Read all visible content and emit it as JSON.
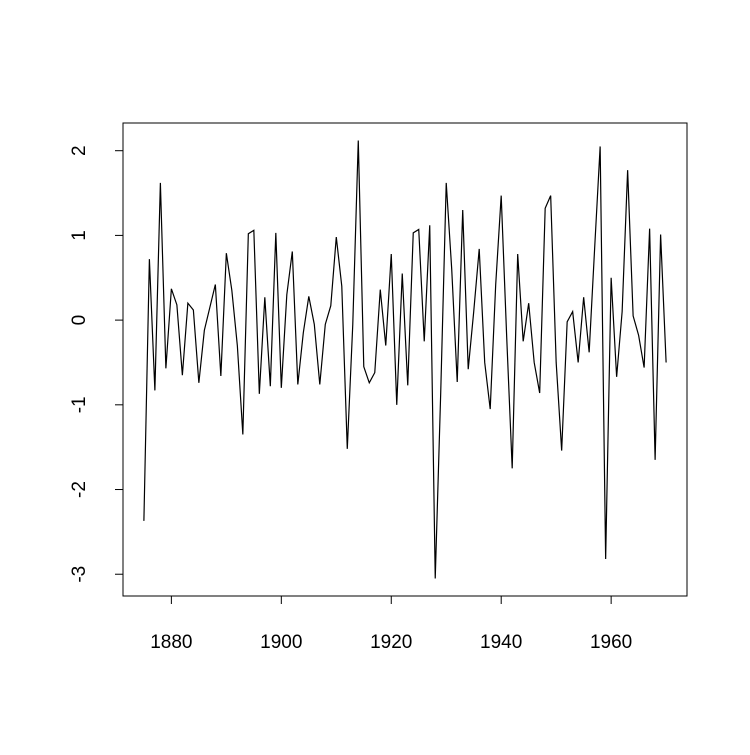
{
  "chart_data": {
    "type": "line",
    "color": "#000000",
    "x": [
      1875,
      1876,
      1877,
      1878,
      1879,
      1880,
      1881,
      1882,
      1883,
      1884,
      1885,
      1886,
      1887,
      1888,
      1889,
      1890,
      1891,
      1892,
      1893,
      1894,
      1895,
      1896,
      1897,
      1898,
      1899,
      1900,
      1901,
      1902,
      1903,
      1904,
      1905,
      1906,
      1907,
      1908,
      1909,
      1910,
      1911,
      1912,
      1913,
      1914,
      1915,
      1916,
      1917,
      1918,
      1919,
      1920,
      1921,
      1922,
      1923,
      1924,
      1925,
      1926,
      1927,
      1928,
      1929,
      1930,
      1931,
      1932,
      1933,
      1934,
      1935,
      1936,
      1937,
      1938,
      1939,
      1940,
      1941,
      1942,
      1943,
      1944,
      1945,
      1946,
      1947,
      1948,
      1949,
      1950,
      1951,
      1952,
      1953,
      1954,
      1955,
      1956,
      1957,
      1958,
      1959,
      1960,
      1961,
      1962,
      1963,
      1964,
      1965,
      1966,
      1967,
      1968,
      1969,
      1970
    ],
    "values": [
      -2.37,
      0.72,
      -0.83,
      1.62,
      -0.57,
      0.37,
      0.18,
      -0.65,
      0.2,
      0.12,
      -0.74,
      -0.12,
      0.15,
      0.42,
      -0.66,
      0.79,
      0.35,
      -0.3,
      -1.35,
      1.02,
      1.06,
      -0.87,
      0.27,
      -0.78,
      1.03,
      -0.8,
      0.3,
      0.81,
      -0.76,
      -0.15,
      0.28,
      -0.05,
      -0.76,
      -0.05,
      0.17,
      0.98,
      0.4,
      -1.52,
      -0.05,
      2.12,
      -0.55,
      -0.74,
      -0.62,
      0.36,
      -0.3,
      0.78,
      -1.0,
      0.55,
      -0.77,
      1.03,
      1.07,
      -0.25,
      1.12,
      -3.05,
      -0.85,
      1.62,
      0.6,
      -0.73,
      1.3,
      -0.58,
      0.1,
      0.84,
      -0.5,
      -1.05,
      0.42,
      1.47,
      -0.2,
      -1.75,
      0.78,
      -0.25,
      0.2,
      -0.5,
      -0.86,
      1.32,
      1.47,
      -0.5,
      -1.54,
      -0.02,
      0.1,
      -0.5,
      0.27,
      -0.38,
      0.85,
      2.05,
      -2.82,
      0.5,
      -0.67,
      0.1,
      1.77,
      0.05,
      -0.18,
      -0.56,
      1.08,
      -1.65,
      1.01,
      -0.5
    ],
    "xlim": [
      1871.2,
      1973.8
    ],
    "xticks": [
      1880,
      1900,
      1920,
      1940,
      1960
    ],
    "ylim": [
      -3.257,
      2.327
    ],
    "yticks": [
      -3,
      -2,
      -1,
      0,
      1,
      2
    ]
  }
}
